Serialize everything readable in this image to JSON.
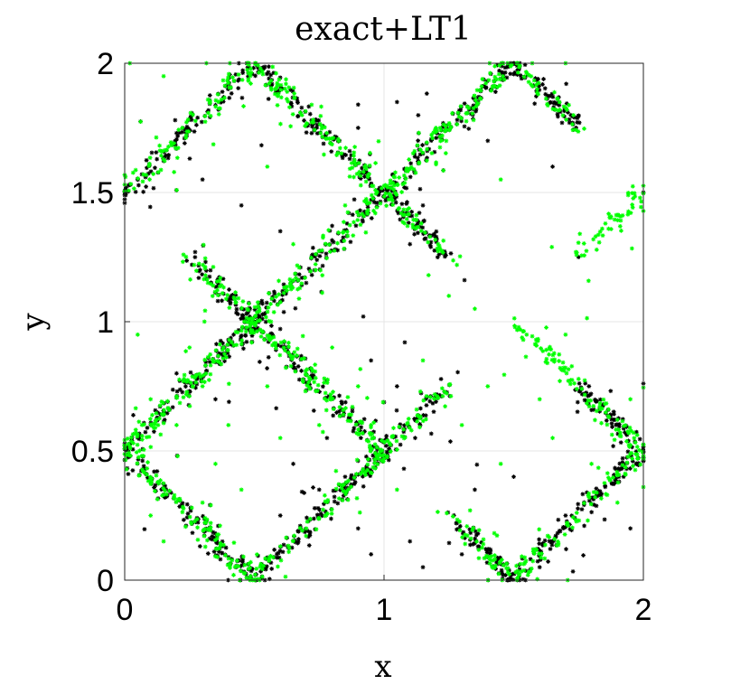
{
  "chart_data": {
    "type": "scatter",
    "title": "exact+LT1",
    "xlabel": "x",
    "ylabel": "y",
    "xlim": [
      0,
      2
    ],
    "ylim": [
      0,
      2
    ],
    "xticks": [
      0,
      1,
      2
    ],
    "xtick_labels": [
      "0",
      "1",
      "2"
    ],
    "yticks": [
      0,
      0.5,
      1,
      1.5,
      2
    ],
    "ytick_labels": [
      "0",
      "0.5",
      "1",
      "1.5",
      "2"
    ],
    "grid": true,
    "marker": "asterisk",
    "series": [
      {
        "color": "#000000",
        "segments": [
          [
            [
              0,
              0.5
            ],
            [
              0.5,
              0
            ]
          ],
          [
            [
              0.5,
              0
            ],
            [
              1.25,
              0.75
            ]
          ],
          [
            [
              0,
              0.5
            ],
            [
              0.5,
              1
            ]
          ],
          [
            [
              0.5,
              1
            ],
            [
              1,
              0.5
            ]
          ],
          [
            [
              0.25,
              1.25
            ],
            [
              0.5,
              1
            ]
          ],
          [
            [
              0.5,
              1
            ],
            [
              1.5,
              2
            ]
          ],
          [
            [
              0,
              1.5
            ],
            [
              0.5,
              2
            ]
          ],
          [
            [
              0.5,
              2
            ],
            [
              1,
              1.5
            ]
          ],
          [
            [
              1,
              1.5
            ],
            [
              1.25,
              1.25
            ]
          ],
          [
            [
              1.5,
              2
            ],
            [
              1.75,
              1.75
            ]
          ],
          [
            [
              1.25,
              0.25
            ],
            [
              1.5,
              0
            ]
          ],
          [
            [
              1.5,
              0
            ],
            [
              2,
              0.5
            ]
          ],
          [
            [
              1.75,
              0.75
            ],
            [
              2,
              0.5
            ]
          ]
        ],
        "points": [
          [
            1.75,
            1.25
          ],
          [
            2,
            1.5
          ],
          [
            0.5,
            1
          ],
          [
            0.45,
            1.05
          ],
          [
            0.48,
            0.97
          ],
          [
            0.52,
            1.02
          ],
          [
            0.42,
            0.95
          ],
          [
            1.05,
            0.75
          ],
          [
            1.12,
            0.55
          ],
          [
            0.95,
            0.85
          ],
          [
            0.9,
            0.2
          ],
          [
            1.1,
            0.15
          ],
          [
            1.15,
            0.05
          ],
          [
            1.3,
            0.1
          ],
          [
            0.95,
            0.1
          ],
          [
            1.5,
            0.4
          ],
          [
            1.6,
            0.05
          ],
          [
            0.78,
            0.55
          ],
          [
            0.65,
            0.45
          ],
          [
            0.85,
            0.4
          ],
          [
            0.3,
            1.55
          ],
          [
            0.45,
            1.45
          ],
          [
            0.9,
            1.75
          ],
          [
            1.05,
            1.85
          ],
          [
            1.1,
            1.3
          ],
          [
            1.4,
            1.7
          ],
          [
            1.15,
            1.65
          ],
          [
            0.6,
            1.35
          ],
          [
            0.7,
            1.15
          ],
          [
            0.92,
            1.02
          ],
          [
            1.15,
            1.45
          ],
          [
            1.65,
            1.6
          ],
          [
            0.2,
            0.8
          ],
          [
            0.35,
            0.7
          ],
          [
            1.08,
            0.92
          ],
          [
            1.35,
            0.35
          ],
          [
            1.7,
            0.25
          ],
          [
            1.95,
            0.2
          ],
          [
            0.6,
            0.25
          ],
          [
            0.75,
            0.35
          ]
        ],
        "count": 1600,
        "noise": 0.018
      },
      {
        "color": "#00ff00",
        "segments": [
          [
            [
              0,
              0.5
            ],
            [
              0.5,
              0
            ]
          ],
          [
            [
              0.5,
              0
            ],
            [
              1.25,
              0.75
            ]
          ],
          [
            [
              0,
              0.5
            ],
            [
              0.5,
              1
            ]
          ],
          [
            [
              0.5,
              1
            ],
            [
              1,
              0.5
            ]
          ],
          [
            [
              0.25,
              1.25
            ],
            [
              0.5,
              1
            ]
          ],
          [
            [
              0.5,
              1
            ],
            [
              1.5,
              2
            ]
          ],
          [
            [
              0,
              1.5
            ],
            [
              0.5,
              2
            ]
          ],
          [
            [
              0.5,
              2
            ],
            [
              1,
              1.5
            ]
          ],
          [
            [
              1,
              1.5
            ],
            [
              1.25,
              1.25
            ]
          ],
          [
            [
              1.5,
              2
            ],
            [
              1.75,
              1.75
            ]
          ],
          [
            [
              1.25,
              0.25
            ],
            [
              1.5,
              0
            ]
          ],
          [
            [
              1.5,
              0
            ],
            [
              2,
              0.5
            ]
          ],
          [
            [
              1.75,
              0.75
            ],
            [
              2,
              0.5
            ]
          ],
          [
            [
              1.75,
              1.25
            ],
            [
              2,
              1.5
            ]
          ],
          [
            [
              1.5,
              1
            ],
            [
              1.75,
              0.75
            ]
          ]
        ],
        "points": [
          [
            0.05,
            0.95
          ],
          [
            0.1,
            0.7
          ],
          [
            0.2,
            0.6
          ],
          [
            0.3,
            0.75
          ],
          [
            0.35,
            0.45
          ],
          [
            0.4,
            0.6
          ],
          [
            0.1,
            0.25
          ],
          [
            0.15,
            0.15
          ],
          [
            0.8,
            0.9
          ],
          [
            0.9,
            0.75
          ],
          [
            1.25,
            1.1
          ],
          [
            1.35,
            1.05
          ],
          [
            1.55,
            0.95
          ],
          [
            1.6,
            0.7
          ],
          [
            1.65,
            0.55
          ],
          [
            1.8,
            0.45
          ],
          [
            1.9,
            0.3
          ],
          [
            1.45,
            0.45
          ],
          [
            1.3,
            0.6
          ],
          [
            0.65,
            1.3
          ],
          [
            0.55,
            1.6
          ],
          [
            0.85,
            1.45
          ],
          [
            1.2,
            1.75
          ],
          [
            1.45,
            1.55
          ],
          [
            0.02,
            2.0
          ],
          [
            1.7,
            2.0
          ],
          [
            0.15,
            1.95
          ],
          [
            0.75,
            0.6
          ],
          [
            0.55,
            0.75
          ],
          [
            0.25,
            0.9
          ],
          [
            0.95,
            0.6
          ],
          [
            1.05,
            0.35
          ],
          [
            1.15,
            0.85
          ],
          [
            1.4,
            0.75
          ],
          [
            1.7,
            0.95
          ],
          [
            0.3,
            0.3
          ],
          [
            0.6,
            0.55
          ],
          [
            0.45,
            0.35
          ],
          [
            0.7,
            0.2
          ],
          [
            1.95,
            0.7
          ]
        ],
        "count": 1400,
        "noise": 0.02
      }
    ]
  }
}
